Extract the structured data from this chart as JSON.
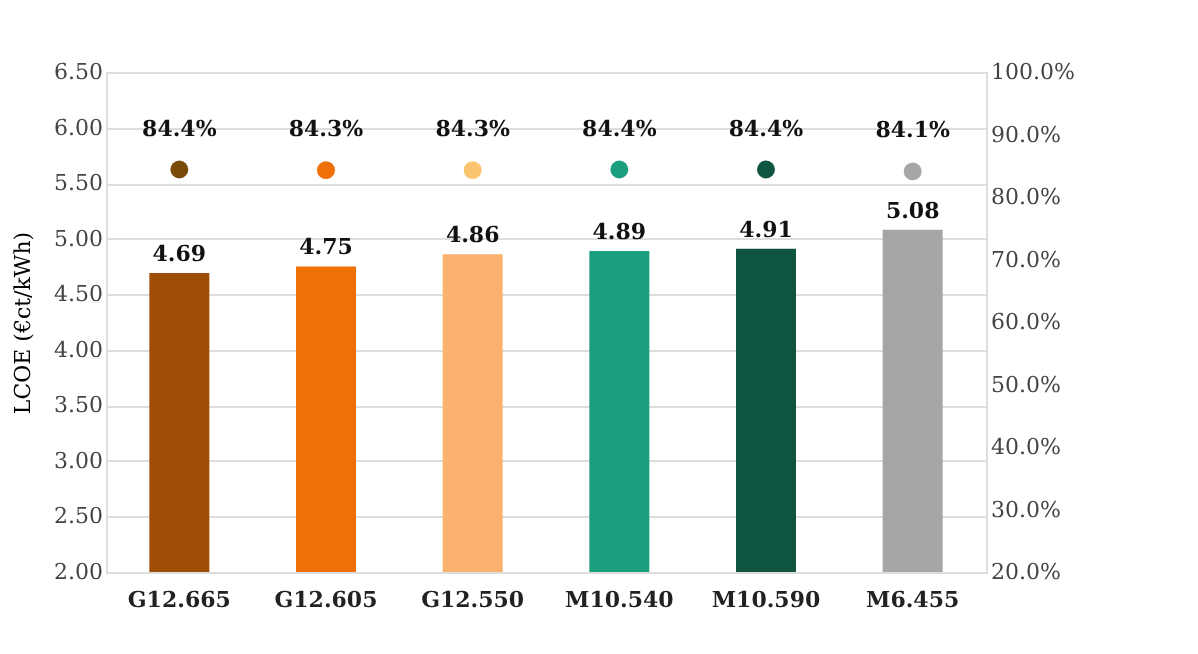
{
  "chart_data": {
    "type": "bar",
    "ylabel": "LCOE (€ct/kWh)",
    "categories": [
      "G12.665",
      "G12.605",
      "G12.550",
      "M10.540",
      "M10.590",
      "M6.455"
    ],
    "series": [
      {
        "colors": [
          "#a04e05",
          "#f07008",
          "#fbb26f",
          "#1a9e7e",
          "#0f5542",
          "#a6a6a6"
        ],
        "values": [
          4.69,
          4.75,
          4.86,
          4.89,
          4.91,
          5.08
        ],
        "data_labels": true
      },
      {
        "type": "scatter",
        "axis": "y2",
        "colors": [
          "#7a4a0a",
          "#f07008",
          "#fbc46f",
          "#1a9e7e",
          "#0f5542",
          "#a6a6a6"
        ],
        "values": [
          84.4,
          84.3,
          84.3,
          84.4,
          84.4,
          84.1
        ],
        "value_labels": [
          "84.4%",
          "84.3%",
          "84.3%",
          "84.4%",
          "84.4%",
          "84.1%"
        ],
        "marker": "circle"
      }
    ],
    "ylim": [
      2.0,
      6.5
    ],
    "yticks": [
      {
        "value": 2.0,
        "label": "2.00"
      },
      {
        "value": 2.5,
        "label": "2.50"
      },
      {
        "value": 3.0,
        "label": "3.00"
      },
      {
        "value": 3.5,
        "label": "3.50"
      },
      {
        "value": 4.0,
        "label": "4.00"
      },
      {
        "value": 4.5,
        "label": "4.50"
      },
      {
        "value": 5.0,
        "label": "5.00"
      },
      {
        "value": 5.5,
        "label": "5.50"
      },
      {
        "value": 6.0,
        "label": "6.00"
      },
      {
        "value": 6.5,
        "label": "6.50"
      }
    ],
    "y2lim": [
      20,
      100
    ],
    "y2ticks": [
      {
        "value": 20,
        "label": "20.0%"
      },
      {
        "value": 30,
        "label": "30.0%"
      },
      {
        "value": 40,
        "label": "40.0%"
      },
      {
        "value": 50,
        "label": "50.0%"
      },
      {
        "value": 60,
        "label": "60.0%"
      },
      {
        "value": 70,
        "label": "70.0%"
      },
      {
        "value": 80,
        "label": "80.0%"
      },
      {
        "value": 90,
        "label": "90.0%"
      },
      {
        "value": 100,
        "label": "100.0%"
      }
    ],
    "grid": "y",
    "legend": false
  }
}
